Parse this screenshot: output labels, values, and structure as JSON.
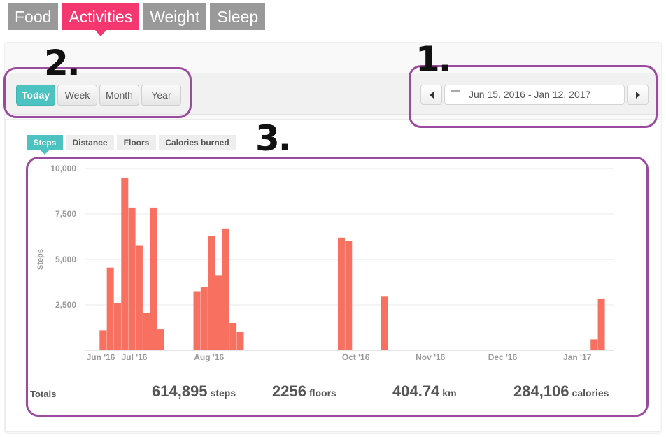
{
  "nav": {
    "tabs": [
      {
        "label": "Food"
      },
      {
        "label": "Activities",
        "active": true
      },
      {
        "label": "Weight"
      },
      {
        "label": "Sleep"
      }
    ]
  },
  "period": {
    "buttons": [
      {
        "label": "Today",
        "active": true
      },
      {
        "label": "Week"
      },
      {
        "label": "Month"
      },
      {
        "label": "Year"
      }
    ]
  },
  "date_range": {
    "text": "Jun 15, 2016 - Jan 12, 2017",
    "icons": [
      "chevron-left-icon",
      "calendar-icon",
      "chevron-right-icon"
    ]
  },
  "metric_tabs": [
    {
      "label": "Steps",
      "active": true
    },
    {
      "label": "Distance"
    },
    {
      "label": "Floors"
    },
    {
      "label": "Calories burned"
    }
  ],
  "annotations": {
    "one": "1.",
    "two": "2.",
    "three": "3."
  },
  "colors": {
    "accent_pink": "#f4376e",
    "accent_teal": "#4cc3c0",
    "bar": "#f87060",
    "marker": "#9b4b9e"
  },
  "chart_data": {
    "type": "bar",
    "ylabel": "Steps",
    "ylim": [
      0,
      10000
    ],
    "yticks": [
      10000,
      7500,
      5000,
      2500
    ],
    "ytick_labels": [
      "10,000",
      "7,500",
      "5,000",
      "2,500"
    ],
    "xrange": [
      "2016-06-15",
      "2017-01-12"
    ],
    "xtick_labels": [
      {
        "label": "Jun '16",
        "date": "2016-06-15"
      },
      {
        "label": "Jul '16",
        "date": "2016-07-01"
      },
      {
        "label": "Aug '16",
        "date": "2016-08-01"
      },
      {
        "label": "Oct '16",
        "date": "2016-10-01"
      },
      {
        "label": "Nov '16",
        "date": "2016-11-01"
      },
      {
        "label": "Dec '16",
        "date": "2016-12-01"
      },
      {
        "label": "Jan '17",
        "date": "2017-01-01"
      }
    ],
    "grid": true,
    "points": [
      {
        "date": "2016-06-18",
        "value": 1100
      },
      {
        "date": "2016-06-21",
        "value": 4550
      },
      {
        "date": "2016-06-24",
        "value": 2600
      },
      {
        "date": "2016-06-27",
        "value": 9500
      },
      {
        "date": "2016-06-30",
        "value": 7850
      },
      {
        "date": "2016-07-03",
        "value": 5750
      },
      {
        "date": "2016-07-06",
        "value": 2050
      },
      {
        "date": "2016-07-09",
        "value": 7850
      },
      {
        "date": "2016-07-12",
        "value": 1150
      },
      {
        "date": "2016-07-27",
        "value": 3250
      },
      {
        "date": "2016-07-30",
        "value": 3500
      },
      {
        "date": "2016-08-02",
        "value": 6300
      },
      {
        "date": "2016-08-05",
        "value": 4100
      },
      {
        "date": "2016-08-08",
        "value": 6700
      },
      {
        "date": "2016-08-11",
        "value": 1500
      },
      {
        "date": "2016-08-14",
        "value": 1000
      },
      {
        "date": "2016-09-25",
        "value": 6200
      },
      {
        "date": "2016-09-28",
        "value": 6000
      },
      {
        "date": "2016-10-13",
        "value": 2950
      },
      {
        "date": "2017-01-08",
        "value": 600
      },
      {
        "date": "2017-01-11",
        "value": 2850
      }
    ]
  },
  "totals": {
    "label": "Totals",
    "items": [
      {
        "value": "614,895",
        "unit": "steps"
      },
      {
        "value": "2256",
        "unit": "floors"
      },
      {
        "value": "404.74",
        "unit": "km"
      },
      {
        "value": "284,106",
        "unit": "calories"
      }
    ]
  }
}
